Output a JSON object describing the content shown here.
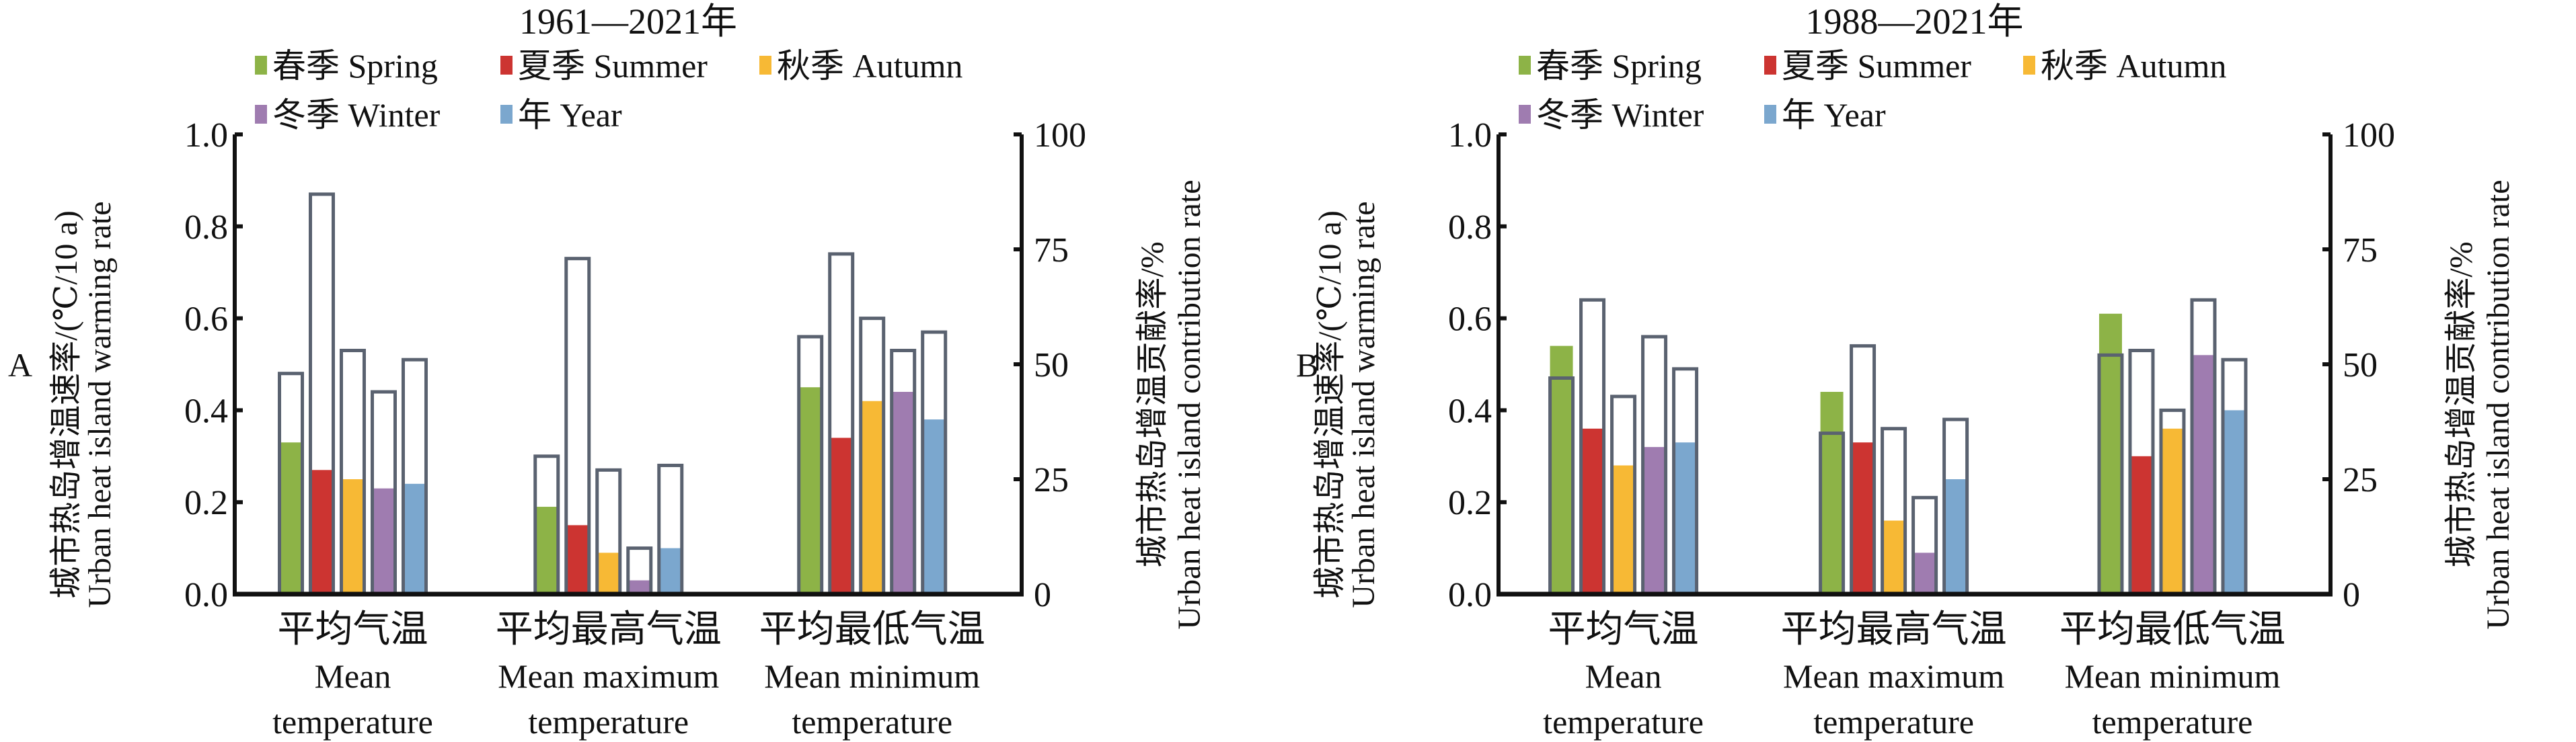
{
  "colors": {
    "spring": "#8db347",
    "summer": "#cc3431",
    "autumn": "#f7b935",
    "winter": "#9f7cb0",
    "year": "#7ba7ce",
    "outline": "#5a6270",
    "axis": "#111111"
  },
  "legend": [
    "春季 Spring",
    "夏季 Summer",
    "秋季 Autumn",
    "冬季 Winter",
    "年 Year"
  ],
  "chart_data": [
    {
      "type": "bar",
      "panel_label": "A",
      "title": "1961—2021年",
      "categories": [
        [
          "平均气温",
          "Mean",
          "temperature"
        ],
        [
          "平均最高气温",
          "Mean maximum",
          "temperature"
        ],
        [
          "平均最低气温",
          "Mean minimum",
          "temperature"
        ]
      ],
      "ylabel_left": [
        "城市热岛增温速率/(℃/10 a)",
        "Urban heat island warming rate"
      ],
      "ylabel_right": [
        "城市热岛增温贡献率/%",
        "Urban heat island contribution rate"
      ],
      "ylim_left": [
        0,
        1.0
      ],
      "yticks_left": [
        "0.0",
        "0.2",
        "0.4",
        "0.6",
        "0.8",
        "1.0"
      ],
      "ylim_right": [
        0,
        100
      ],
      "yticks_right": [
        "0",
        "25",
        "50",
        "75",
        "100"
      ],
      "series": [
        {
          "name": "春季 Spring",
          "warming_rate": [
            0.33,
            0.19,
            0.45
          ],
          "contribution_rate": [
            48,
            30,
            56
          ]
        },
        {
          "name": "夏季 Summer",
          "warming_rate": [
            0.27,
            0.15,
            0.34
          ],
          "contribution_rate": [
            87,
            73,
            74
          ]
        },
        {
          "name": "秋季 Autumn",
          "warming_rate": [
            0.25,
            0.09,
            0.42
          ],
          "contribution_rate": [
            53,
            27,
            60
          ]
        },
        {
          "name": "冬季 Winter",
          "warming_rate": [
            0.23,
            0.03,
            0.44
          ],
          "contribution_rate": [
            44,
            10,
            53
          ]
        },
        {
          "name": "年 Year",
          "warming_rate": [
            0.24,
            0.1,
            0.38
          ],
          "contribution_rate": [
            51,
            28,
            57
          ]
        }
      ]
    },
    {
      "type": "bar",
      "panel_label": "B",
      "title": "1988—2021年",
      "categories": [
        [
          "平均气温",
          "Mean",
          "temperature"
        ],
        [
          "平均最高气温",
          "Mean maximum",
          "temperature"
        ],
        [
          "平均最低气温",
          "Mean minimum",
          "temperature"
        ]
      ],
      "ylabel_left": [
        "城市热岛增温速率/(℃/10 a)",
        "Urban heat island warming rate"
      ],
      "ylabel_right": [
        "城市热岛增温贡献率/%",
        "Urban heat island contribution rate"
      ],
      "ylim_left": [
        0,
        1.0
      ],
      "yticks_left": [
        "0.0",
        "0.2",
        "0.4",
        "0.6",
        "0.8",
        "1.0"
      ],
      "ylim_right": [
        0,
        100
      ],
      "yticks_right": [
        "0",
        "25",
        "50",
        "75",
        "100"
      ],
      "series": [
        {
          "name": "春季 Spring",
          "warming_rate": [
            0.54,
            0.44,
            0.61
          ],
          "contribution_rate": [
            47,
            35,
            52
          ]
        },
        {
          "name": "夏季 Summer",
          "warming_rate": [
            0.36,
            0.33,
            0.3
          ],
          "contribution_rate": [
            64,
            54,
            53
          ]
        },
        {
          "name": "秋季 Autumn",
          "warming_rate": [
            0.28,
            0.16,
            0.36
          ],
          "contribution_rate": [
            43,
            36,
            40
          ]
        },
        {
          "name": "冬季 Winter",
          "warming_rate": [
            0.32,
            0.09,
            0.52
          ],
          "contribution_rate": [
            56,
            21,
            64
          ]
        },
        {
          "name": "年 Year",
          "warming_rate": [
            0.33,
            0.25,
            0.4
          ],
          "contribution_rate": [
            49,
            38,
            51
          ]
        }
      ]
    }
  ]
}
